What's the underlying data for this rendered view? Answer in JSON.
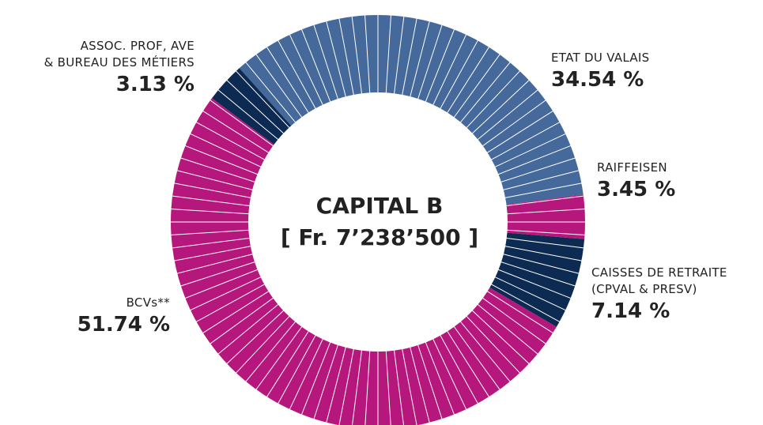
{
  "chart_data": {
    "type": "pie",
    "donut": true,
    "title": "CAPITAL B",
    "subtitle": "[ Fr. 7’238’500 ]",
    "categories": [
      "ETAT DU VALAIS",
      "RAIFFEISEN",
      "CAISSES DE RETRAITE\n(CPVAL & PRESV)",
      "BCVs**",
      "ASSOC. PROF, AVE\n& BUREAU DES MÉTIERS"
    ],
    "values": [
      34.54,
      3.45,
      7.14,
      51.74,
      3.13
    ],
    "value_labels": [
      "34.54 %",
      "3.45 %",
      "7.14 %",
      "51.74 %",
      "3.13 %"
    ],
    "colors": [
      "#44699a",
      "#b5177c",
      "#0d2a52",
      "#b5177c",
      "#0d2a52"
    ]
  }
}
